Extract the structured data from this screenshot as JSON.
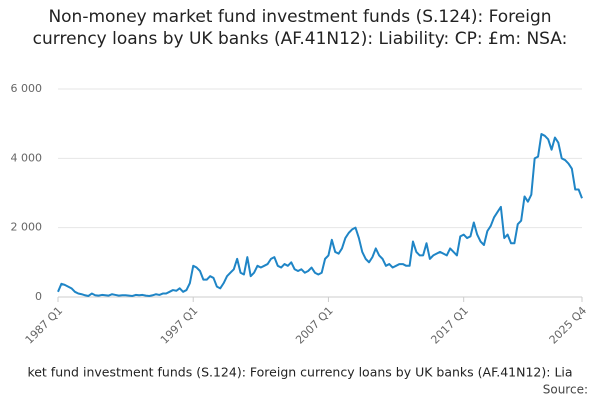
{
  "chart_data": {
    "type": "line",
    "title": "Non-money market fund investment funds (S.124): Foreign currency loans by UK banks (AF.41N12): Liability: CP: £m: NSA:",
    "x_label": "ket fund investment funds (S.124): Foreign currency loans by UK banks (AF.41N12): Lia",
    "source": "Source:",
    "categories": [
      "1987 Q1",
      null,
      null,
      null,
      null,
      null,
      null,
      null,
      null,
      null,
      null,
      null,
      null,
      null,
      null,
      null,
      null,
      null,
      null,
      null,
      null,
      null,
      null,
      null,
      null,
      null,
      null,
      null,
      null,
      null,
      null,
      null,
      null,
      null,
      null,
      null,
      null,
      null,
      null,
      null,
      "1997 Q1",
      null,
      null,
      null,
      null,
      null,
      null,
      null,
      null,
      null,
      null,
      null,
      null,
      null,
      null,
      null,
      null,
      null,
      null,
      null,
      null,
      null,
      null,
      null,
      null,
      null,
      null,
      null,
      null,
      null,
      null,
      null,
      null,
      null,
      null,
      null,
      null,
      null,
      null,
      null,
      "2007 Q1",
      null,
      null,
      null,
      null,
      null,
      null,
      null,
      null,
      null,
      null,
      null,
      null,
      null,
      null,
      null,
      null,
      null,
      null,
      null,
      null,
      null,
      null,
      null,
      null,
      null,
      null,
      null,
      null,
      null,
      null,
      null,
      null,
      null,
      null,
      null,
      null,
      null,
      null,
      null,
      "2017 Q1",
      null,
      null,
      null,
      null,
      null,
      null,
      null,
      null,
      null,
      null,
      null,
      null,
      null,
      null,
      null,
      null,
      null,
      null,
      null,
      null,
      null,
      null,
      null,
      null,
      null,
      null,
      null,
      null,
      null,
      null,
      null,
      null,
      null,
      null,
      "2025 Q4"
    ],
    "series": [
      {
        "color": "#1f85c6",
        "values": [
          150,
          380,
          350,
          300,
          250,
          150,
          100,
          80,
          50,
          30,
          100,
          50,
          40,
          60,
          50,
          40,
          80,
          60,
          40,
          50,
          50,
          40,
          30,
          60,
          50,
          60,
          40,
          30,
          50,
          80,
          60,
          100,
          100,
          150,
          200,
          180,
          250,
          150,
          200,
          400,
          900,
          850,
          750,
          500,
          500,
          600,
          550,
          300,
          250,
          400,
          600,
          700,
          800,
          1100,
          700,
          650,
          1150,
          600,
          700,
          900,
          850,
          900,
          950,
          1100,
          1150,
          900,
          850,
          950,
          900,
          1000,
          800,
          750,
          800,
          700,
          750,
          850,
          700,
          650,
          700,
          1100,
          1200,
          1650,
          1300,
          1250,
          1400,
          1700,
          1850,
          1950,
          2000,
          1700,
          1300,
          1100,
          1000,
          1150,
          1400,
          1200,
          1100,
          900,
          950,
          850,
          900,
          950,
          950,
          900,
          900,
          1600,
          1300,
          1200,
          1200,
          1550,
          1100,
          1200,
          1250,
          1300,
          1250,
          1200,
          1400,
          1300,
          1200,
          1750,
          1800,
          1700,
          1750,
          2150,
          1800,
          1600,
          1500,
          1900,
          2050,
          2300,
          2450,
          2600,
          1700,
          1800,
          1550,
          1550,
          2100,
          2200,
          2900,
          2750,
          2950,
          4000,
          4050,
          4700,
          4650,
          4550,
          4250,
          4600,
          4450,
          4000,
          3950,
          3850,
          3700,
          3100,
          3100,
          2850
        ]
      }
    ],
    "ylim": [
      0,
      6000
    ],
    "yticks": [
      0,
      {
        "value": 2000,
        "label": "2 000"
      },
      {
        "value": 4000,
        "label": "4 000"
      },
      {
        "value": 6000,
        "label": "6 000"
      }
    ],
    "grid": true
  }
}
